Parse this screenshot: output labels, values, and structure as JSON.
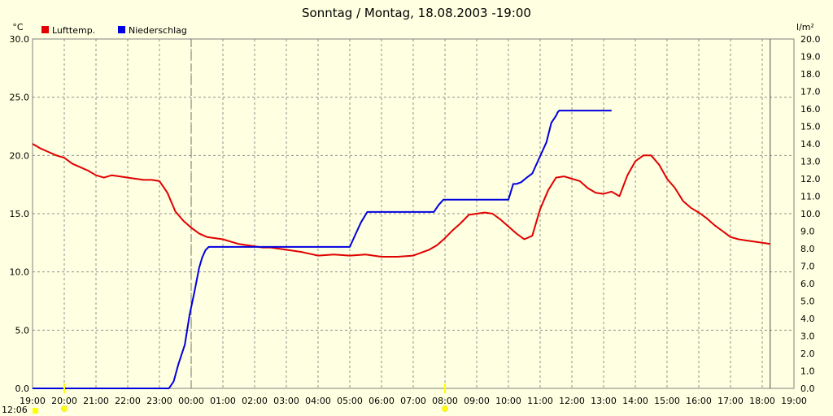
{
  "chart_data": {
    "type": "line",
    "title": "Sonntag / Montag, 18.08.2003  -19:00",
    "y_left_unit": "°C",
    "y_right_unit": "l/m²",
    "y_left_range": [
      0,
      30
    ],
    "y_right_range": [
      0,
      20
    ],
    "y_left_ticks": [
      "0.0",
      "5.0",
      "10.0",
      "15.0",
      "20.0",
      "25.0",
      "30.0"
    ],
    "y_right_ticks": [
      "0.0",
      "1.0",
      "2.0",
      "3.0",
      "4.0",
      "5.0",
      "6.0",
      "7.0",
      "8.0",
      "9.0",
      "10.0",
      "11.0",
      "12.0",
      "13.0",
      "14.0",
      "15.0",
      "16.0",
      "17.0",
      "18.0",
      "19.0",
      "20.0"
    ],
    "x_ticks": [
      "19:00",
      "20:00",
      "21:00",
      "22:00",
      "23:00",
      "00:00",
      "01:00",
      "02:00",
      "03:00",
      "04:00",
      "05:00",
      "06:00",
      "07:00",
      "08:00",
      "09:00",
      "10:00",
      "11:00",
      "12:00",
      "13:00",
      "14:00",
      "15:00",
      "16:00",
      "17:00",
      "18:00",
      "19:00"
    ],
    "grid": true,
    "legend_position": "top-left",
    "markers": {
      "midnight_hour": 5,
      "sun_hours": [
        1,
        13
      ],
      "footer_label": "12:06"
    },
    "series": [
      {
        "name": "Lufttemp.",
        "color": "#e00000",
        "axis": "left",
        "x": [
          0,
          0.25,
          0.5,
          0.75,
          1,
          1.25,
          1.5,
          1.75,
          2,
          2.25,
          2.5,
          2.75,
          3,
          3.25,
          3.5,
          3.75,
          4,
          4.25,
          4.5,
          4.75,
          5,
          5.25,
          5.5,
          5.75,
          6,
          6.25,
          6.5,
          6.75,
          7,
          7.25,
          7.5,
          7.75,
          8,
          8.5,
          9,
          9.5,
          10,
          10.5,
          11,
          11.5,
          12,
          12.5,
          12.75,
          13,
          13.25,
          13.5,
          13.75,
          14,
          14.25,
          14.5,
          14.75,
          15,
          15.25,
          15.5,
          15.75,
          16,
          16.25,
          16.5,
          16.75,
          17,
          17.25,
          17.5,
          17.75,
          18,
          18.25,
          18.5,
          18.75,
          19,
          19.25,
          19.5,
          19.75,
          20,
          20.25,
          20.5,
          20.75,
          21,
          21.25,
          21.5,
          21.75,
          22,
          22.25,
          22.5,
          22.75,
          23,
          23.25
        ],
        "values": [
          21.0,
          20.6,
          20.3,
          20.0,
          19.8,
          19.3,
          19.0,
          18.7,
          18.3,
          18.1,
          18.3,
          18.2,
          18.1,
          18.0,
          17.9,
          17.9,
          17.8,
          16.8,
          15.2,
          14.4,
          13.8,
          13.3,
          13.0,
          12.9,
          12.8,
          12.6,
          12.4,
          12.3,
          12.2,
          12.1,
          12.1,
          12.0,
          11.9,
          11.7,
          11.4,
          11.5,
          11.4,
          11.5,
          11.3,
          11.3,
          11.4,
          11.9,
          12.3,
          12.9,
          13.6,
          14.2,
          14.9,
          15.0,
          15.1,
          15.0,
          14.5,
          13.9,
          13.3,
          12.8,
          13.1,
          15.4,
          17.0,
          18.1,
          18.2,
          18.0,
          17.8,
          17.2,
          16.8,
          16.7,
          16.9,
          16.5,
          18.3,
          19.5,
          20.0,
          20.0,
          19.2,
          18.0,
          17.2,
          16.1,
          15.5,
          15.1,
          14.6,
          14.0,
          13.5,
          13.0,
          12.8,
          12.7,
          12.6,
          12.5,
          12.4
        ]
      },
      {
        "name": "Niederschlag",
        "color": "#0000e0",
        "axis": "right",
        "x": [
          0,
          4.3,
          4.45,
          4.6,
          4.8,
          4.95,
          5.1,
          5.25,
          5.35,
          5.45,
          5.55,
          5.7,
          6,
          8,
          10,
          10.15,
          10.35,
          10.55,
          10.6,
          10.7,
          12,
          12.65,
          12.8,
          12.95,
          13,
          14,
          15,
          15.15,
          15.25,
          15.4,
          15.6,
          15.75,
          16,
          16.2,
          16.35,
          16.5,
          16.55,
          16.6,
          16.7,
          17,
          18,
          18.25
        ],
        "values": [
          0,
          0,
          0.4,
          1.4,
          2.5,
          4.2,
          5.5,
          6.9,
          7.5,
          7.9,
          8.1,
          8.1,
          8.1,
          8.1,
          8.1,
          8.7,
          9.5,
          10.1,
          10.1,
          10.1,
          10.1,
          10.1,
          10.5,
          10.8,
          10.8,
          10.8,
          10.8,
          11.7,
          11.7,
          11.8,
          12.1,
          12.3,
          13.3,
          14.1,
          15.2,
          15.6,
          15.8,
          15.9,
          15.9,
          15.9,
          15.9,
          15.9
        ]
      }
    ]
  }
}
